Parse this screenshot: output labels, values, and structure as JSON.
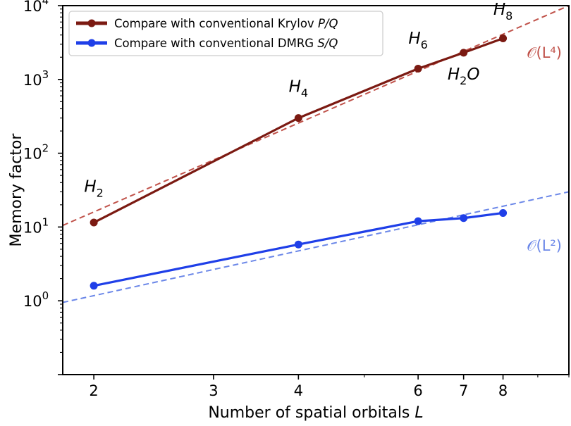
{
  "chart_data": {
    "type": "line",
    "xlabel": "Number of spatial orbitals L",
    "ylabel": "Memory factor",
    "xscale": "log",
    "yscale": "log",
    "xlim": [
      1.8,
      10
    ],
    "ylim": [
      0.1,
      10000
    ],
    "xticks": [
      2,
      3,
      4,
      6,
      7,
      8
    ],
    "xtick_labels": [
      "2",
      "3",
      "4",
      "6",
      "7",
      "8"
    ],
    "yticks": [
      1,
      10,
      100,
      1000,
      10000
    ],
    "ytick_labels": [
      {
        "base": "10",
        "exp": "0"
      },
      {
        "base": "10",
        "exp": "1"
      },
      {
        "base": "10",
        "exp": "2"
      },
      {
        "base": "10",
        "exp": "3"
      },
      {
        "base": "10",
        "exp": "4"
      }
    ],
    "grid": false,
    "legend_position": "top-left",
    "series": [
      {
        "name": "Compare with conventional Krylov P/Q",
        "legend_prefix": "Compare with conventional Krylov ",
        "legend_italic": "P/Q",
        "color": "#7b1a12",
        "x": [
          2,
          4,
          6,
          7,
          8
        ],
        "y": [
          11.5,
          300,
          1400,
          2300,
          3600
        ]
      },
      {
        "name": "Compare with conventional DMRG S/Q",
        "legend_prefix": "Compare with conventional DMRG ",
        "legend_italic": "S/Q",
        "color": "#1f3fe8",
        "x": [
          2,
          4,
          6,
          7,
          8
        ],
        "y": [
          1.6,
          5.8,
          12,
          13.2,
          15.5
        ]
      }
    ],
    "fits": [
      {
        "label": "𝒪(L⁴)",
        "color": "#c0524a",
        "x": [
          1.8,
          10
        ],
        "y": [
          10.5,
          10000
        ]
      },
      {
        "label": "𝒪(L²)",
        "color": "#6b87e8",
        "x": [
          1.8,
          10
        ],
        "y": [
          0.95,
          30
        ]
      }
    ],
    "annotations": [
      {
        "base": "H",
        "sub": "2",
        "x": 2,
        "y": 30
      },
      {
        "base": "H",
        "sub": "4",
        "x": 4,
        "y": 680
      },
      {
        "base": "H",
        "sub": "6",
        "x": 6,
        "y": 3050
      },
      {
        "base": "H",
        "sub": "2",
        "tail": "O",
        "x": 7,
        "y": 1000
      },
      {
        "base": "H",
        "sub": "8",
        "x": 8,
        "y": 7500
      }
    ]
  }
}
